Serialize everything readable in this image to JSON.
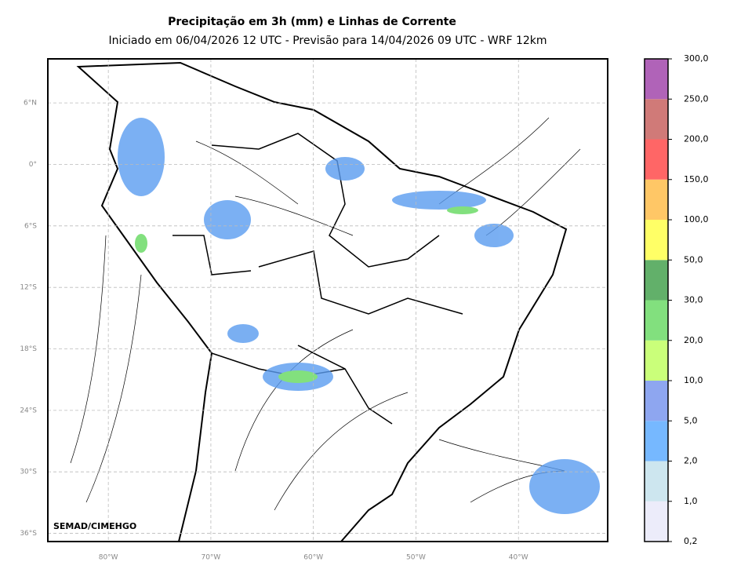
{
  "header": {
    "title": "Precipitação em 3h (mm) e Linhas de Corrente",
    "subtitle": "Iniciado em 06/04/2026 12 UTC - Previsão para 14/04/2026 09 UTC - WRF 12km"
  },
  "map": {
    "lon_range": [
      -85.9,
      -31.3
    ],
    "lat_range": [
      -36.8,
      10.3
    ],
    "lat_ticks": [
      {
        "value": 6,
        "label": "6°N"
      },
      {
        "value": 0,
        "label": "0°"
      },
      {
        "value": -6,
        "label": "6°S"
      },
      {
        "value": -12,
        "label": "12°S"
      },
      {
        "value": -18,
        "label": "18°S"
      },
      {
        "value": -24,
        "label": "24°S"
      },
      {
        "value": -30,
        "label": "30°S"
      },
      {
        "value": -36,
        "label": "36°S"
      }
    ],
    "lon_ticks": [
      {
        "value": -80,
        "label": "80°W"
      },
      {
        "value": -70,
        "label": "70°W"
      },
      {
        "value": -60,
        "label": "60°W"
      },
      {
        "value": -50,
        "label": "50°W"
      },
      {
        "value": -40,
        "label": "40°W"
      }
    ],
    "credit": "SEMAD/CIMEHGO"
  },
  "colorbar": {
    "ticks": [
      {
        "value": 0.2,
        "label": "0,2"
      },
      {
        "value": 1,
        "label": "1,0"
      },
      {
        "value": 2,
        "label": "2,0"
      },
      {
        "value": 5,
        "label": "5,0"
      },
      {
        "value": 10,
        "label": "10,0"
      },
      {
        "value": 20,
        "label": "20,0"
      },
      {
        "value": 30,
        "label": "30,0"
      },
      {
        "value": 50,
        "label": "50,0"
      },
      {
        "value": 100,
        "label": "100,0"
      },
      {
        "value": 150,
        "label": "150,0"
      },
      {
        "value": 200,
        "label": "200,0"
      },
      {
        "value": 250,
        "label": "250,0"
      },
      {
        "value": 300,
        "label": "300,0"
      }
    ],
    "colors": [
      "#ececfa",
      "#cde6ef",
      "#76b8ff",
      "#8ea6f0",
      "#caff7a",
      "#82e07e",
      "#62b06a",
      "#ffff66",
      "#ffc766",
      "#ff6666",
      "#d07a78",
      "#b063b8"
    ]
  }
}
